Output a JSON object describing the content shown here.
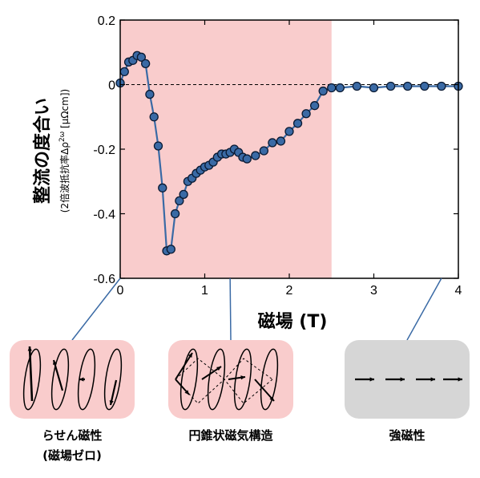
{
  "chart_data": {
    "type": "scatter",
    "xlabel": "磁場 (T)",
    "ylabel": "整流の度合い",
    "ylabel_sub": "(2倍波抵抗率Δρ",
    "ylabel_sub_sup": "2ω",
    "ylabel_sub_end": " [μΩcm])",
    "xlim": [
      0,
      4
    ],
    "ylim": [
      -0.6,
      0.2
    ],
    "x_ticks": [
      "0",
      "1",
      "2",
      "3",
      "4"
    ],
    "y_ticks": [
      "0.2",
      "0",
      "-0.2",
      "-0.4",
      "-0.6"
    ],
    "grid": false,
    "zero_line": true,
    "shaded_region": {
      "x_start": 0,
      "x_end": 2.5,
      "color": "#f9cccc"
    },
    "series": [
      {
        "color": "#3a6aa5",
        "x": [
          0.0,
          0.05,
          0.1,
          0.15,
          0.2,
          0.25,
          0.3,
          0.35,
          0.4,
          0.45,
          0.5,
          0.55,
          0.6,
          0.65,
          0.7,
          0.75,
          0.8,
          0.85,
          0.9,
          0.95,
          1.0,
          1.05,
          1.1,
          1.15,
          1.2,
          1.25,
          1.3,
          1.35,
          1.4,
          1.45,
          1.5,
          1.6,
          1.7,
          1.8,
          1.9,
          2.0,
          2.1,
          2.2,
          2.3,
          2.4,
          2.5,
          2.6,
          2.8,
          3.0,
          3.2,
          3.4,
          3.6,
          3.8,
          4.0
        ],
        "y": [
          0.005,
          0.04,
          0.07,
          0.075,
          0.09,
          0.085,
          0.065,
          -0.03,
          -0.1,
          -0.19,
          -0.32,
          -0.515,
          -0.51,
          -0.4,
          -0.36,
          -0.34,
          -0.3,
          -0.29,
          -0.275,
          -0.265,
          -0.255,
          -0.25,
          -0.24,
          -0.225,
          -0.215,
          -0.215,
          -0.21,
          -0.2,
          -0.21,
          -0.225,
          -0.23,
          -0.22,
          -0.205,
          -0.18,
          -0.175,
          -0.145,
          -0.12,
          -0.09,
          -0.065,
          -0.02,
          -0.01,
          -0.01,
          -0.005,
          -0.01,
          -0.005,
          -0.005,
          -0.005,
          -0.005,
          -0.005
        ]
      }
    ]
  },
  "panels": [
    {
      "caption_lines": [
        "らせん磁性",
        "(磁場ゼロ)"
      ],
      "bg_color": "#f9cccc",
      "x_field": 0.0
    },
    {
      "caption_lines": [
        "円錐状磁気構造"
      ],
      "bg_color": "#f9cccc",
      "x_field": 1.3
    },
    {
      "caption_lines": [
        "強磁性"
      ],
      "bg_color": "#d6d6d6",
      "x_field": 3.8
    }
  ]
}
